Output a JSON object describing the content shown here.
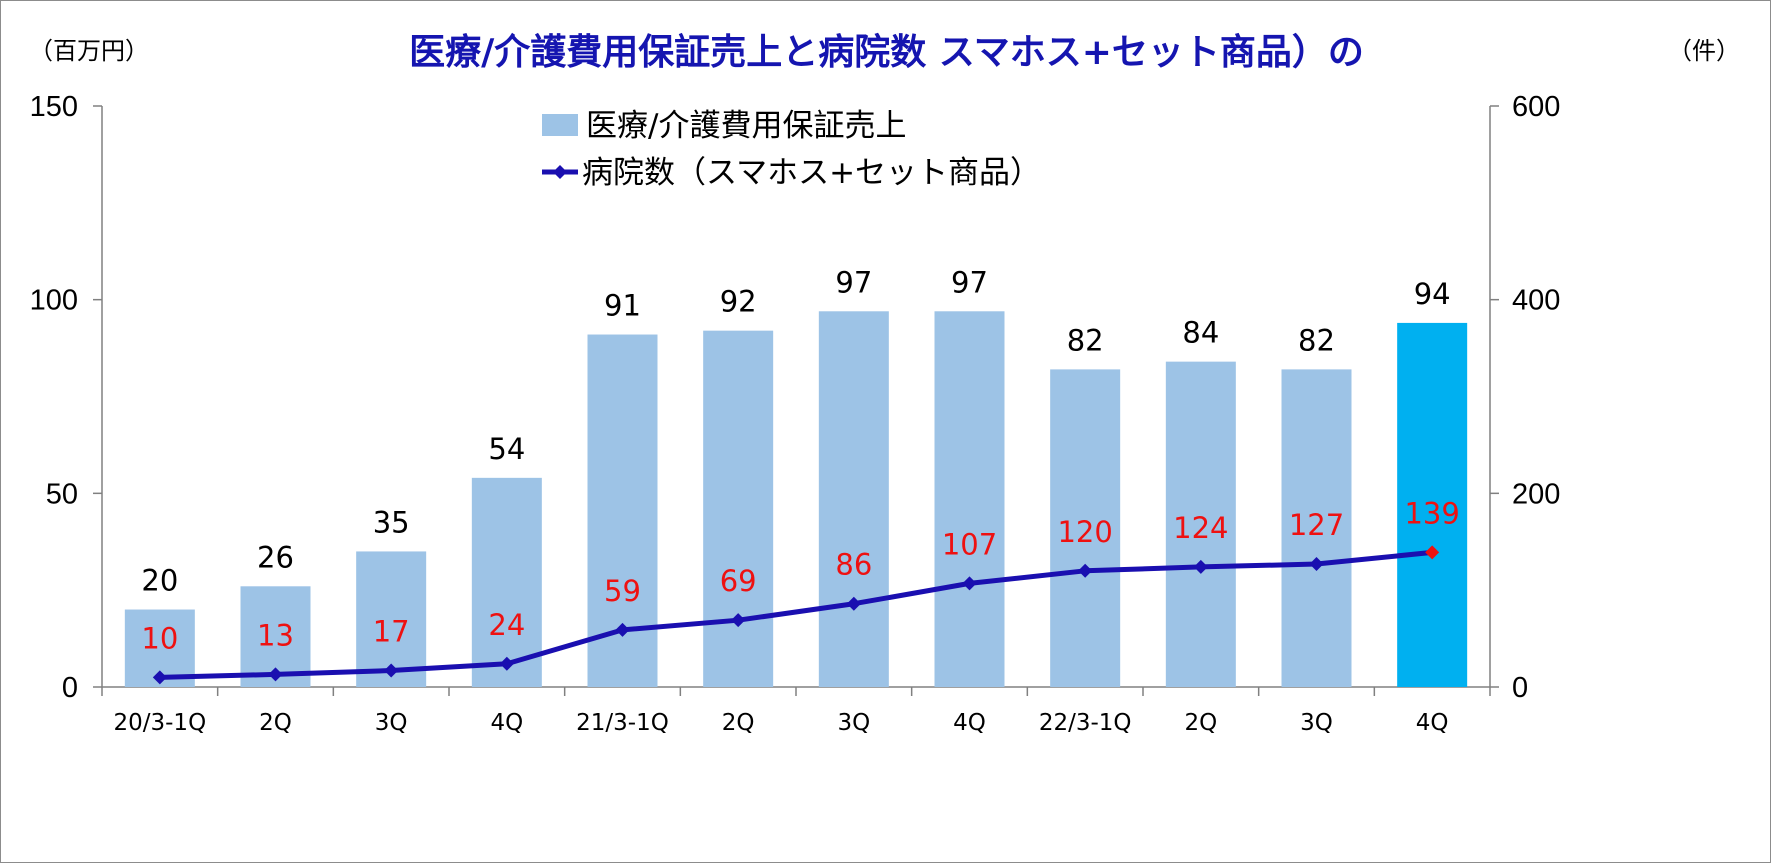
{
  "chart_data": {
    "type": "bar",
    "title": "医療/介護費用保証売上と病院数 スマホス+セット商品）の",
    "y_unit_left": "（百万円）",
    "y_unit_right": "（件）",
    "categories": [
      "20/3-1Q",
      "2Q",
      "3Q",
      "4Q",
      "21/3-1Q",
      "2Q",
      "3Q",
      "4Q",
      "22/3-1Q",
      "2Q",
      "3Q",
      "4Q"
    ],
    "ylim_left": [
      0,
      150
    ],
    "yticks_left": [
      0,
      50,
      100,
      150
    ],
    "ylim_right": [
      0,
      600
    ],
    "yticks_right": [
      0,
      200,
      400,
      600
    ],
    "grid": false,
    "legend_position": "top-center",
    "series": [
      {
        "name": "医療/介護費用保証売上",
        "type": "bar",
        "axis": "left",
        "values": [
          20,
          26,
          35,
          54,
          91,
          92,
          97,
          97,
          82,
          84,
          82,
          94
        ],
        "color": "#9dc3e6",
        "highlight_color": "#00b0f0",
        "highlight_index": 11
      },
      {
        "name": "病院数（スマホス+セット商品）",
        "type": "line",
        "axis": "right",
        "values": [
          10,
          13,
          17,
          24,
          59,
          69,
          86,
          107,
          120,
          124,
          127,
          139
        ],
        "color": "#1a0fb0",
        "marker": "diamond",
        "label_color": "#ee1111",
        "highlight_marker_color": "#ee1111",
        "highlight_index": 11
      }
    ]
  }
}
